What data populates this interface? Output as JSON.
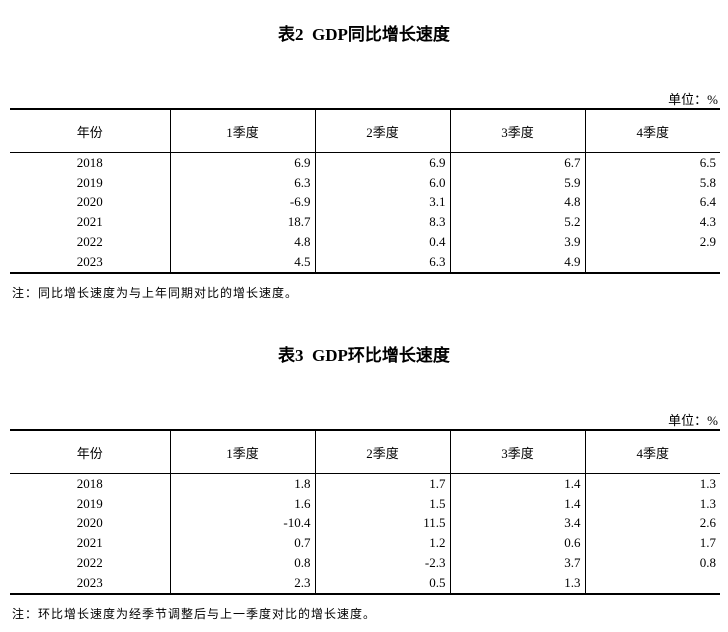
{
  "tables": [
    {
      "title": "表2  GDP同比增长速度",
      "unit": "单位：%",
      "header": [
        "年份",
        "1季度",
        "2季度",
        "3季度",
        "4季度"
      ],
      "rows": [
        [
          "2018",
          "6.9",
          "6.9",
          "6.7",
          "6.5"
        ],
        [
          "2019",
          "6.3",
          "6.0",
          "5.9",
          "5.8"
        ],
        [
          "2020",
          "-6.9",
          "3.1",
          "4.8",
          "6.4"
        ],
        [
          "2021",
          "18.7",
          "8.3",
          "5.2",
          "4.3"
        ],
        [
          "2022",
          "4.8",
          "0.4",
          "3.9",
          "2.9"
        ],
        [
          "2023",
          "4.5",
          "6.3",
          "4.9",
          null
        ]
      ],
      "note": "注：同比增长速度为与上年同期对比的增长速度。"
    },
    {
      "title": "表3  GDP环比增长速度",
      "unit": "单位：%",
      "header": [
        "年份",
        "1季度",
        "2季度",
        "3季度",
        "4季度"
      ],
      "rows": [
        [
          "2018",
          "1.8",
          "1.7",
          "1.4",
          "1.3"
        ],
        [
          "2019",
          "1.6",
          "1.5",
          "1.4",
          "1.3"
        ],
        [
          "2020",
          "-10.4",
          "11.5",
          "3.4",
          "2.6"
        ],
        [
          "2021",
          "0.7",
          "1.2",
          "0.6",
          "1.7"
        ],
        [
          "2022",
          "0.8",
          "-2.3",
          "3.7",
          "0.8"
        ],
        [
          "2023",
          "2.3",
          "0.5",
          "1.3",
          null
        ]
      ],
      "note": "注：环比增长速度为经季节调整后与上一季度对比的增长速度。"
    }
  ]
}
